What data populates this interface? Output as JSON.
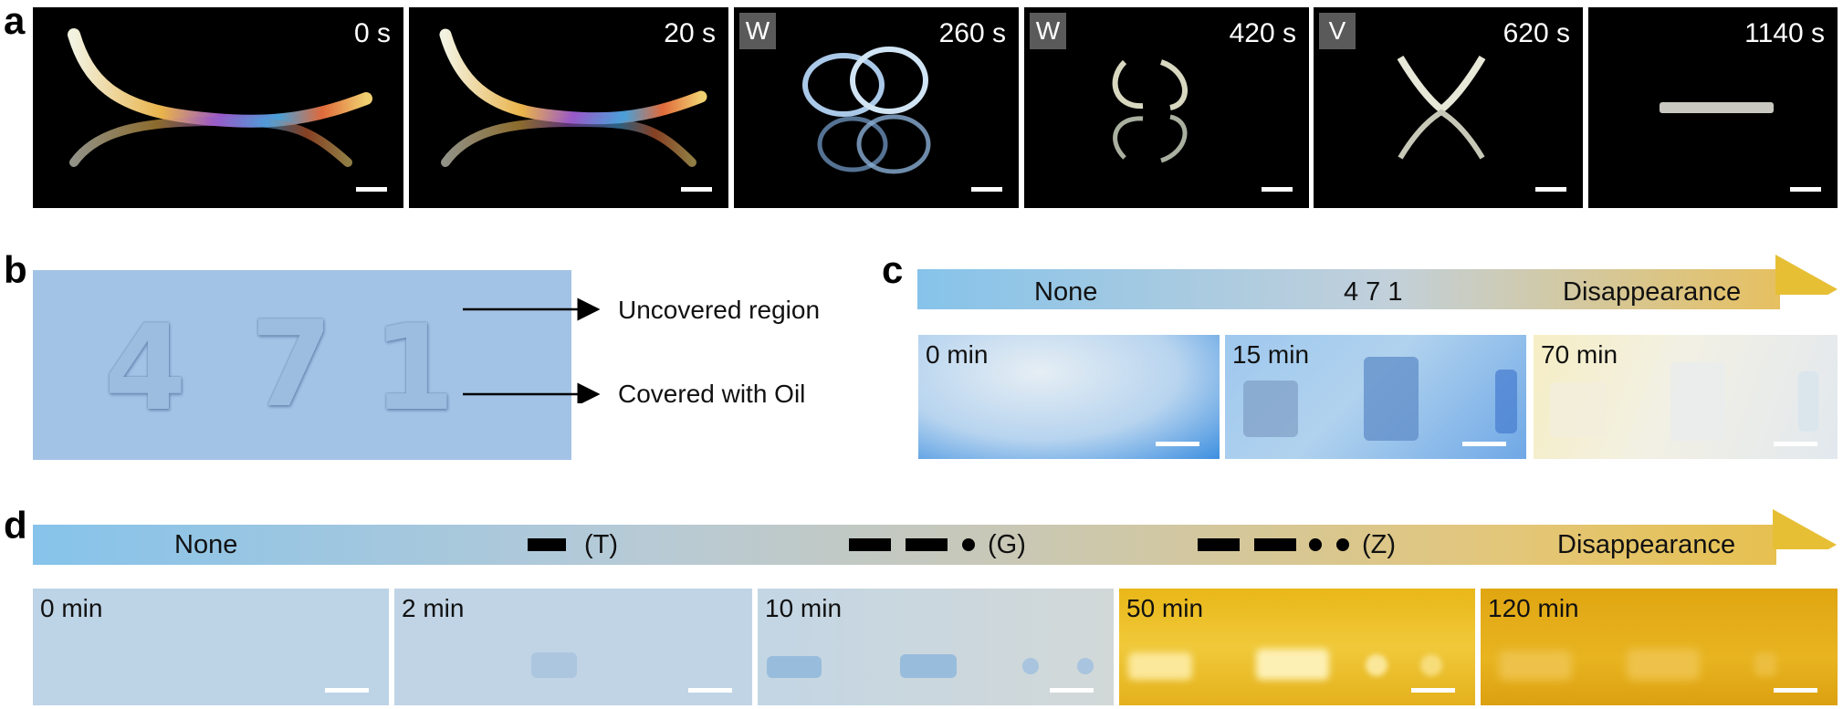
{
  "panel_a": {
    "label": "a",
    "frames": [
      {
        "time": "0 s",
        "tag": ""
      },
      {
        "time": "20 s",
        "tag": ""
      },
      {
        "time": "260 s",
        "tag": "W"
      },
      {
        "time": "420 s",
        "tag": "W"
      },
      {
        "time": "620 s",
        "tag": "V"
      },
      {
        "time": "1140 s",
        "tag": ""
      }
    ]
  },
  "panel_b": {
    "label": "b",
    "digits": [
      "4",
      "7",
      "1"
    ],
    "annotations": {
      "uncovered": "Uncovered region",
      "covered": "Covered with Oil"
    }
  },
  "panel_c": {
    "label": "c",
    "arrow": {
      "start": "None",
      "middle": "4 7 1",
      "end": "Disappearance"
    },
    "tiles": [
      {
        "time": "0 min"
      },
      {
        "time": "15 min"
      },
      {
        "time": "70 min"
      }
    ]
  },
  "panel_d": {
    "label": "d",
    "arrow": {
      "start": "None",
      "t": "(T)",
      "g": "(G)",
      "z": "(Z)",
      "end": "Disappearance"
    },
    "tiles": [
      {
        "time": "0 min"
      },
      {
        "time": "2 min"
      },
      {
        "time": "10 min"
      },
      {
        "time": "50 min"
      },
      {
        "time": "120 min"
      }
    ]
  },
  "colors": {
    "arrow_start": "#86c3ea",
    "arrow_mid": "#c9cdd0",
    "arrow_end": "#e6bf35",
    "panel_b_bg": "#a3c3e6"
  }
}
